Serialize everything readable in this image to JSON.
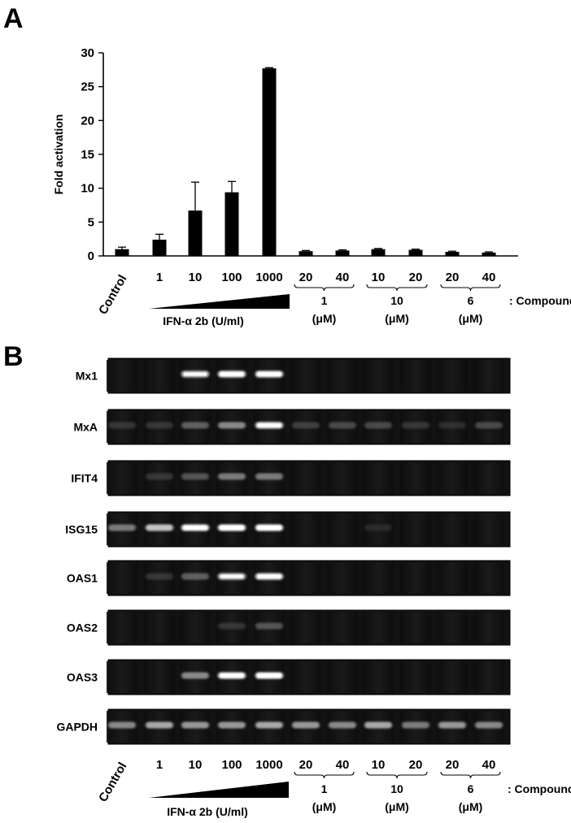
{
  "panels": {
    "a_label": "A",
    "b_label": "B"
  },
  "chart_data": {
    "type": "bar",
    "ylabel": "Fold activation",
    "ylim": [
      0,
      30
    ],
    "yticks": [
      "0",
      "5",
      "10",
      "15",
      "20",
      "25",
      "30"
    ],
    "categories": [
      "Control",
      "1",
      "10",
      "100",
      "1000",
      "20",
      "40",
      "10",
      "20",
      "20",
      "40"
    ],
    "values": [
      1.0,
      2.4,
      6.7,
      9.4,
      27.7,
      0.7,
      0.8,
      1.0,
      0.9,
      0.6,
      0.5
    ],
    "errors": [
      0.3,
      0.8,
      4.2,
      1.6,
      0.1,
      0.1,
      0.1,
      0.1,
      0.1,
      0.1,
      0.1
    ],
    "bar_color": "#000000"
  },
  "annotations": {
    "ifn_label": "IFN-α 2b (U/ml)",
    "compound_suffix": ": Compound",
    "compound_groups": [
      {
        "name": "1",
        "unit": "(μM)",
        "doses": [
          "20",
          "40"
        ]
      },
      {
        "name": "10",
        "unit": "(μM)",
        "doses": [
          "10",
          "20"
        ]
      },
      {
        "name": "6",
        "unit": "(μM)",
        "doses": [
          "20",
          "40"
        ]
      }
    ]
  },
  "gel": {
    "genes": [
      "Mx1",
      "MxA",
      "IFIT4",
      "ISG15",
      "OAS1",
      "OAS2",
      "OAS3",
      "GAPDH"
    ],
    "intensities": [
      [
        0,
        0,
        0.75,
        0.95,
        0.95,
        0,
        0,
        0,
        0,
        0,
        0
      ],
      [
        0.15,
        0.15,
        0.35,
        0.5,
        0.9,
        0.2,
        0.25,
        0.25,
        0.15,
        0.1,
        0.25
      ],
      [
        0,
        0.15,
        0.3,
        0.45,
        0.45,
        0,
        0,
        0,
        0,
        0,
        0
      ],
      [
        0.45,
        0.7,
        0.95,
        1.0,
        1.0,
        0,
        0,
        0.06,
        0,
        0,
        0
      ],
      [
        0,
        0.15,
        0.35,
        0.75,
        0.9,
        0,
        0,
        0,
        0,
        0,
        0
      ],
      [
        0,
        0,
        0,
        0.15,
        0.3,
        0,
        0,
        0,
        0,
        0,
        0
      ],
      [
        0,
        0,
        0.5,
        0.95,
        1.0,
        0,
        0,
        0,
        0,
        0,
        0
      ],
      [
        0.5,
        0.6,
        0.55,
        0.55,
        0.6,
        0.55,
        0.5,
        0.6,
        0.45,
        0.55,
        0.5
      ]
    ]
  }
}
